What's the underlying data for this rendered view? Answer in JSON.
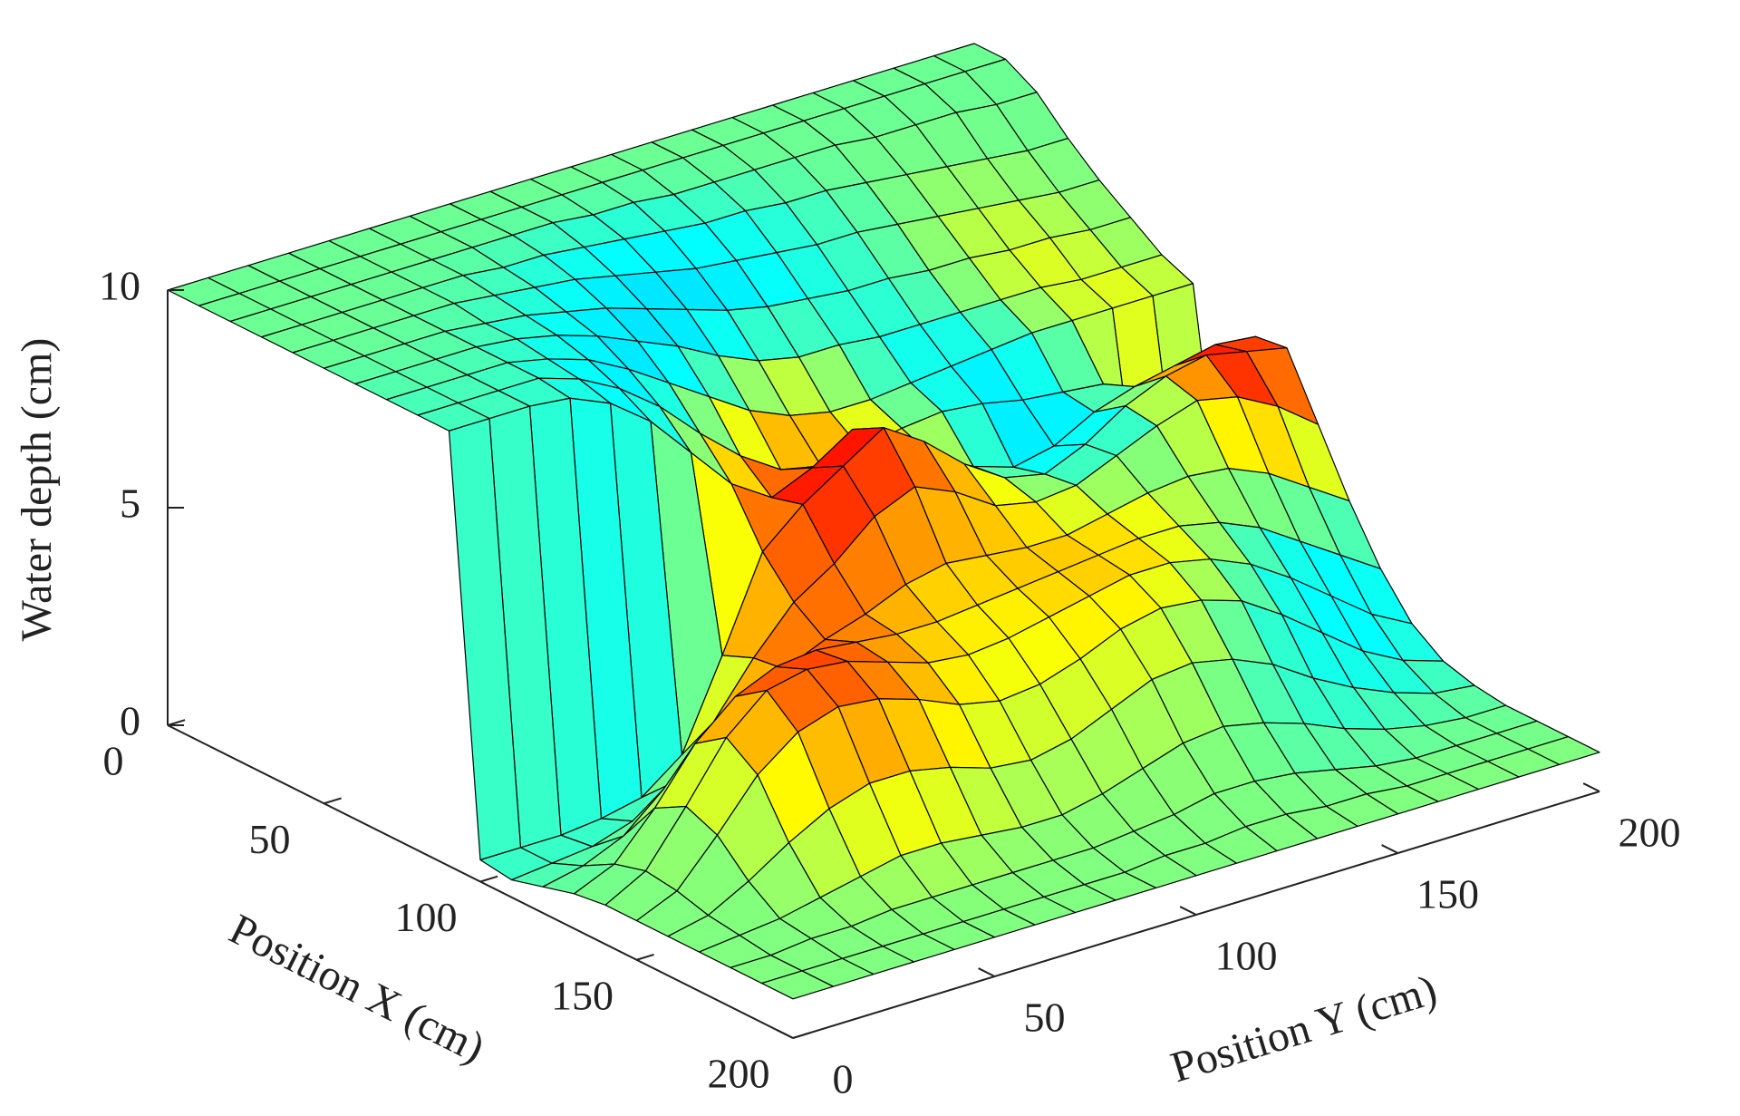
{
  "chart_data": {
    "type": "surface",
    "xlabel": "Position X (cm)",
    "ylabel": "Position Y (cm)",
    "zlabel": "Water depth (cm)",
    "x": [
      0,
      10,
      20,
      30,
      40,
      50,
      60,
      70,
      80,
      90,
      100,
      110,
      120,
      130,
      140,
      150,
      160,
      170,
      180,
      190,
      200
    ],
    "y": [
      0,
      10,
      20,
      30,
      40,
      50,
      60,
      70,
      80,
      90,
      100,
      110,
      120,
      130,
      140,
      150,
      160,
      170,
      180,
      190,
      200
    ],
    "z": [
      [
        10,
        10,
        10,
        10,
        10,
        10,
        10,
        10,
        10,
        10,
        10,
        10,
        10,
        10,
        10,
        10,
        10,
        10,
        10,
        10,
        10
      ],
      [
        10,
        10,
        10,
        10,
        10,
        10,
        10,
        10,
        10,
        10,
        10,
        10,
        10,
        10,
        10,
        10,
        10,
        10,
        10,
        10,
        10
      ],
      [
        10,
        10,
        10,
        10,
        10,
        10,
        10,
        10,
        10,
        9.9,
        9.9,
        9.8,
        9.8,
        9.8,
        9.8,
        9.8,
        9.7,
        9.7,
        9.7,
        9.6,
        9.6
      ],
      [
        10,
        10,
        10,
        10,
        10,
        10,
        9.9,
        9.9,
        9.8,
        9.7,
        9.6,
        9.5,
        9.5,
        9.4,
        9.4,
        9.3,
        9.2,
        9.1,
        9.0,
        8.9,
        8.9
      ],
      [
        10,
        10,
        10,
        10,
        10,
        9.9,
        9.8,
        9.7,
        9.5,
        9.3,
        9.1,
        9.0,
        8.9,
        8.8,
        8.8,
        8.7,
        8.6,
        8.5,
        8.4,
        8.3,
        8.3
      ],
      [
        10,
        10,
        10,
        10,
        9.9,
        9.8,
        9.6,
        9.4,
        9.1,
        8.8,
        8.5,
        8.3,
        8.2,
        8.1,
        8.1,
        8.0,
        8.0,
        7.9,
        7.9,
        7.8,
        7.8
      ],
      [
        10,
        10,
        10,
        10,
        9.9,
        9.7,
        9.4,
        9.0,
        8.6,
        8.1,
        7.7,
        7.5,
        7.5,
        7.4,
        7.4,
        7.4,
        7.4,
        7.4,
        7.3,
        7.3,
        7.3
      ],
      [
        10,
        10,
        10,
        10,
        9.8,
        9.5,
        9.0,
        8.4,
        7.8,
        7.2,
        6.8,
        6.6,
        6.6,
        6.7,
        6.8,
        6.9,
        7.0,
        7.0,
        7.0,
        7.0,
        7.0
      ],
      [
        10,
        10,
        10,
        10,
        9.7,
        9.2,
        8.5,
        7.6,
        6.8,
        6.2,
        6.0,
        6.1,
        6.3,
        6.4,
        6.3,
        6.1,
        6.0,
        5.9,
        1.8,
        1.6,
        1.5
      ],
      [
        10,
        10,
        10,
        9.9,
        9.5,
        8.8,
        7.8,
        6.8,
        6.2,
        6.6,
        7.2,
        6.8,
        6.0,
        5.5,
        5.2,
        5.4,
        5.9,
        6.2,
        6.4,
        6.6,
        6.5
      ],
      [
        0.5,
        0.5,
        0.5,
        0.6,
        0.8,
        1.5,
        3.5,
        5.6,
        6.4,
        7.0,
        7.6,
        7.0,
        6.2,
        5.6,
        5.4,
        5.8,
        6.4,
        6.8,
        7.0,
        6.8,
        6.6
      ],
      [
        0.4,
        0.5,
        0.6,
        0.9,
        1.5,
        2.6,
        3.8,
        4.8,
        5.4,
        6.2,
        6.6,
        6.2,
        5.6,
        5.4,
        5.5,
        5.9,
        6.3,
        6.6,
        6.4,
        5.9,
        5.2
      ],
      [
        0.6,
        0.8,
        1.2,
        2.0,
        2.8,
        3.4,
        3.9,
        4.3,
        4.6,
        5.0,
        5.2,
        5.1,
        5.0,
        5.0,
        5.2,
        5.4,
        5.5,
        5.4,
        5.0,
        4.4,
        3.8
      ],
      [
        0.8,
        1.2,
        2.2,
        3.4,
        4.2,
        4.6,
        4.7,
        4.6,
        4.5,
        4.5,
        4.6,
        4.7,
        4.8,
        4.9,
        5.0,
        5.0,
        4.8,
        4.4,
        3.8,
        3.2,
        2.6
      ],
      [
        0.9,
        1.4,
        2.6,
        3.9,
        4.7,
        4.9,
        4.8,
        4.5,
        4.2,
        4.1,
        4.2,
        4.4,
        4.6,
        4.8,
        4.8,
        4.6,
        4.2,
        3.6,
        2.9,
        2.2,
        1.7
      ],
      [
        0.9,
        1.3,
        2.3,
        3.4,
        4.1,
        4.4,
        4.3,
        4.0,
        3.6,
        3.4,
        3.5,
        3.8,
        4.2,
        4.4,
        4.3,
        4.0,
        3.4,
        2.7,
        2.0,
        1.5,
        1.2
      ],
      [
        0.9,
        1.1,
        1.6,
        2.2,
        2.7,
        3.0,
        3.0,
        2.8,
        2.5,
        2.4,
        2.6,
        3.0,
        3.4,
        3.5,
        3.3,
        2.9,
        2.3,
        1.8,
        1.4,
        1.1,
        1.0
      ],
      [
        0.9,
        1.0,
        1.1,
        1.3,
        1.5,
        1.7,
        1.7,
        1.6,
        1.5,
        1.5,
        1.7,
        2.0,
        2.3,
        2.4,
        2.2,
        1.9,
        1.5,
        1.2,
        1.0,
        0.9,
        0.9
      ],
      [
        0.9,
        0.9,
        1.0,
        1.0,
        1.1,
        1.1,
        1.1,
        1.1,
        1.1,
        1.1,
        1.2,
        1.3,
        1.5,
        1.5,
        1.4,
        1.2,
        1.0,
        0.9,
        0.9,
        0.9,
        0.9
      ],
      [
        0.9,
        0.9,
        0.9,
        0.9,
        0.9,
        0.9,
        0.9,
        0.9,
        0.9,
        0.9,
        1.0,
        1.0,
        1.1,
        1.1,
        1.0,
        1.0,
        0.9,
        0.9,
        0.9,
        0.9,
        0.9
      ],
      [
        0.9,
        0.9,
        0.9,
        0.9,
        0.9,
        0.9,
        0.9,
        0.9,
        0.9,
        0.9,
        0.9,
        0.9,
        0.9,
        0.9,
        0.9,
        0.9,
        0.9,
        0.9,
        0.9,
        0.9,
        0.9
      ]
    ],
    "color_values": [
      [
        48,
        48,
        48,
        48,
        48,
        48,
        48,
        48,
        48,
        48,
        48,
        48,
        48,
        48,
        48,
        48,
        48,
        48,
        48,
        48,
        48
      ],
      [
        48,
        48,
        48,
        48,
        48,
        48,
        48,
        48,
        48,
        48,
        48,
        48,
        48,
        48,
        48,
        48,
        48,
        48,
        48,
        48,
        48
      ],
      [
        48,
        48,
        48,
        48,
        48,
        48,
        47,
        46,
        45,
        44,
        44,
        45,
        46,
        47,
        48,
        48,
        48,
        48,
        48,
        48,
        48
      ],
      [
        48,
        48,
        48,
        48,
        47,
        46,
        44,
        42,
        40,
        39,
        39,
        40,
        42,
        44,
        46,
        48,
        50,
        50,
        50,
        49,
        49
      ],
      [
        48,
        48,
        48,
        47,
        46,
        44,
        41,
        38,
        36,
        35,
        35,
        36,
        38,
        41,
        44,
        47,
        52,
        54,
        54,
        52,
        50
      ],
      [
        47,
        47,
        47,
        46,
        44,
        41,
        38,
        36,
        35,
        35,
        36,
        38,
        40,
        42,
        45,
        50,
        56,
        60,
        58,
        54,
        50
      ],
      [
        46,
        46,
        46,
        45,
        42,
        39,
        36,
        35,
        35,
        38,
        45,
        50,
        45,
        40,
        40,
        44,
        52,
        58,
        60,
        56,
        52
      ],
      [
        45,
        45,
        45,
        43,
        40,
        37,
        35,
        36,
        44,
        58,
        68,
        62,
        50,
        40,
        37,
        38,
        45,
        54,
        60,
        62,
        56
      ],
      [
        44,
        44,
        44,
        42,
        39,
        36,
        38,
        52,
        68,
        74,
        76,
        70,
        58,
        44,
        36,
        35,
        38,
        48,
        60,
        56,
        50
      ],
      [
        44,
        44,
        43,
        41,
        38,
        38,
        48,
        66,
        80,
        86,
        82,
        74,
        62,
        48,
        38,
        35,
        38,
        55,
        76,
        82,
        72
      ],
      [
        42,
        42,
        42,
        40,
        40,
        46,
        60,
        74,
        84,
        90,
        84,
        76,
        66,
        54,
        42,
        38,
        42,
        66,
        86,
        94,
        78
      ],
      [
        44,
        44,
        44,
        45,
        50,
        60,
        70,
        76,
        78,
        78,
        74,
        70,
        66,
        60,
        50,
        44,
        48,
        64,
        76,
        74,
        62
      ],
      [
        46,
        46,
        48,
        52,
        62,
        72,
        78,
        78,
        74,
        70,
        68,
        68,
        68,
        66,
        62,
        56,
        54,
        56,
        58,
        54,
        48
      ],
      [
        48,
        48,
        52,
        62,
        74,
        80,
        80,
        76,
        70,
        66,
        64,
        66,
        68,
        68,
        66,
        60,
        52,
        44,
        40,
        38,
        40
      ],
      [
        50,
        50,
        54,
        66,
        78,
        82,
        80,
        74,
        68,
        64,
        62,
        64,
        66,
        66,
        62,
        54,
        44,
        38,
        36,
        36,
        40
      ],
      [
        50,
        50,
        52,
        62,
        72,
        76,
        74,
        70,
        64,
        60,
        60,
        62,
        62,
        60,
        54,
        46,
        40,
        38,
        38,
        40,
        44
      ],
      [
        50,
        50,
        51,
        56,
        62,
        66,
        66,
        62,
        58,
        56,
        56,
        56,
        56,
        54,
        48,
        42,
        40,
        40,
        42,
        44,
        46
      ],
      [
        50,
        50,
        50,
        52,
        54,
        56,
        56,
        54,
        52,
        52,
        52,
        52,
        52,
        50,
        46,
        44,
        44,
        46,
        48,
        48,
        48
      ],
      [
        50,
        50,
        50,
        50,
        51,
        51,
        51,
        51,
        50,
        50,
        50,
        50,
        50,
        49,
        48,
        48,
        48,
        48,
        48,
        48,
        48
      ],
      [
        50,
        50,
        50,
        50,
        50,
        50,
        50,
        50,
        50,
        50,
        50,
        50,
        50,
        50,
        50,
        50,
        50,
        50,
        50,
        50,
        50
      ],
      [
        50,
        50,
        50,
        50,
        50,
        50,
        50,
        50,
        50,
        50,
        50,
        50,
        50,
        50,
        50,
        50,
        50,
        50,
        50,
        50,
        50
      ]
    ],
    "colormap": "jet",
    "clim": [
      0,
      100
    ],
    "edge_color": "#000000",
    "xlim": [
      0,
      200
    ],
    "ylim": [
      0,
      200
    ],
    "zlim": [
      0,
      10
    ],
    "xticks": [
      0,
      50,
      100,
      150,
      200
    ],
    "yticks": [
      0,
      50,
      100,
      150,
      200
    ],
    "zticks": [
      0,
      5,
      10
    ]
  }
}
